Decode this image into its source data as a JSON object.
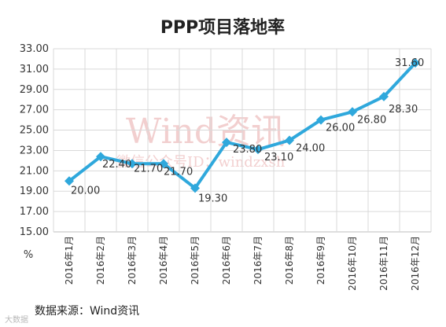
{
  "chart_data": {
    "type": "line",
    "title": "PPP项目落地率",
    "ylabel": "%",
    "xlabel": "",
    "ylim": [
      15.0,
      33.0
    ],
    "yticks": [
      "15.00",
      "17.00",
      "19.00",
      "21.00",
      "23.00",
      "25.00",
      "27.00",
      "29.00",
      "31.00",
      "33.00"
    ],
    "categories": [
      "2016年1月",
      "2016年2月",
      "2016年3月",
      "2016年4月",
      "2016年5月",
      "2016年6月",
      "2016年7月",
      "2016年8月",
      "2016年9月",
      "2016年10月",
      "2016年11月",
      "2016年12月"
    ],
    "values": [
      20.0,
      22.4,
      21.7,
      21.7,
      19.3,
      23.8,
      23.1,
      24.0,
      26.0,
      26.8,
      28.3,
      31.6
    ],
    "data_labels": [
      "20.00",
      "22.40",
      "21.70",
      "21.70",
      "19.30",
      "23.80",
      "23.10",
      "24.00",
      "26.00",
      "26.80",
      "28.30",
      "31.60"
    ],
    "grid": true,
    "line_color": "#2fa8dc"
  },
  "source_note": "数据来源：Wind资讯",
  "watermark": {
    "main": "Wind资讯",
    "sub": "微信公众号ID：windzxsh"
  },
  "corner_mark": "大数据"
}
